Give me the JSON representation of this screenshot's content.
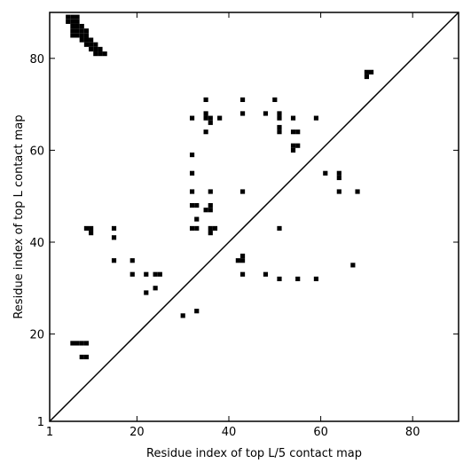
{
  "chart_data": {
    "type": "scatter",
    "title": "",
    "xlabel": "Residue index of top L/5 contact map",
    "ylabel": "Residue index of top L contact map",
    "xlim": [
      1,
      90
    ],
    "ylim": [
      1,
      90
    ],
    "grid": false,
    "x_ticks": [
      1,
      20,
      40,
      60,
      80
    ],
    "y_ticks": [
      1,
      20,
      40,
      60,
      80
    ],
    "diagonal": true,
    "marker_color": "#000000",
    "points": [
      [
        5,
        89
      ],
      [
        6,
        89
      ],
      [
        7,
        89
      ],
      [
        5,
        88
      ],
      [
        6,
        88
      ],
      [
        7,
        88
      ],
      [
        6,
        87
      ],
      [
        7,
        87
      ],
      [
        8,
        87
      ],
      [
        6,
        86
      ],
      [
        7,
        86
      ],
      [
        8,
        86
      ],
      [
        9,
        86
      ],
      [
        6,
        85
      ],
      [
        7,
        85
      ],
      [
        8,
        85
      ],
      [
        9,
        85
      ],
      [
        8,
        84
      ],
      [
        9,
        84
      ],
      [
        10,
        84
      ],
      [
        9,
        83
      ],
      [
        10,
        83
      ],
      [
        11,
        83
      ],
      [
        10,
        82
      ],
      [
        11,
        82
      ],
      [
        12,
        82
      ],
      [
        11,
        81
      ],
      [
        12,
        81
      ],
      [
        13,
        81
      ],
      [
        70,
        77
      ],
      [
        71,
        77
      ],
      [
        70,
        76
      ],
      [
        35,
        71
      ],
      [
        43,
        71
      ],
      [
        50,
        71
      ],
      [
        35,
        68
      ],
      [
        43,
        68
      ],
      [
        48,
        68
      ],
      [
        51,
        68
      ],
      [
        32,
        67
      ],
      [
        35,
        67
      ],
      [
        36,
        67
      ],
      [
        38,
        67
      ],
      [
        51,
        67
      ],
      [
        54,
        67
      ],
      [
        59,
        67
      ],
      [
        36,
        66
      ],
      [
        51,
        65
      ],
      [
        35,
        64
      ],
      [
        51,
        64
      ],
      [
        54,
        64
      ],
      [
        55,
        64
      ],
      [
        54,
        61
      ],
      [
        55,
        61
      ],
      [
        54,
        60
      ],
      [
        32,
        59
      ],
      [
        32,
        55
      ],
      [
        61,
        55
      ],
      [
        64,
        55
      ],
      [
        64,
        54
      ],
      [
        32,
        51
      ],
      [
        36,
        51
      ],
      [
        43,
        51
      ],
      [
        64,
        51
      ],
      [
        68,
        51
      ],
      [
        32,
        48
      ],
      [
        33,
        48
      ],
      [
        36,
        48
      ],
      [
        35,
        47
      ],
      [
        36,
        47
      ],
      [
        33,
        45
      ],
      [
        9,
        43
      ],
      [
        10,
        43
      ],
      [
        15,
        43
      ],
      [
        32,
        43
      ],
      [
        33,
        43
      ],
      [
        36,
        43
      ],
      [
        37,
        43
      ],
      [
        51,
        43
      ],
      [
        10,
        42
      ],
      [
        36,
        42
      ],
      [
        15,
        41
      ],
      [
        43,
        37
      ],
      [
        19,
        36
      ],
      [
        42,
        36
      ],
      [
        43,
        36
      ],
      [
        15,
        36
      ],
      [
        67,
        35
      ],
      [
        19,
        33
      ],
      [
        22,
        33
      ],
      [
        24,
        33
      ],
      [
        25,
        33
      ],
      [
        43,
        33
      ],
      [
        48,
        33
      ],
      [
        51,
        32
      ],
      [
        55,
        32
      ],
      [
        59,
        32
      ],
      [
        24,
        30
      ],
      [
        22,
        29
      ],
      [
        33,
        25
      ],
      [
        30,
        24
      ],
      [
        6,
        18
      ],
      [
        7,
        18
      ],
      [
        8,
        18
      ],
      [
        9,
        18
      ],
      [
        8,
        15
      ],
      [
        9,
        15
      ]
    ]
  }
}
